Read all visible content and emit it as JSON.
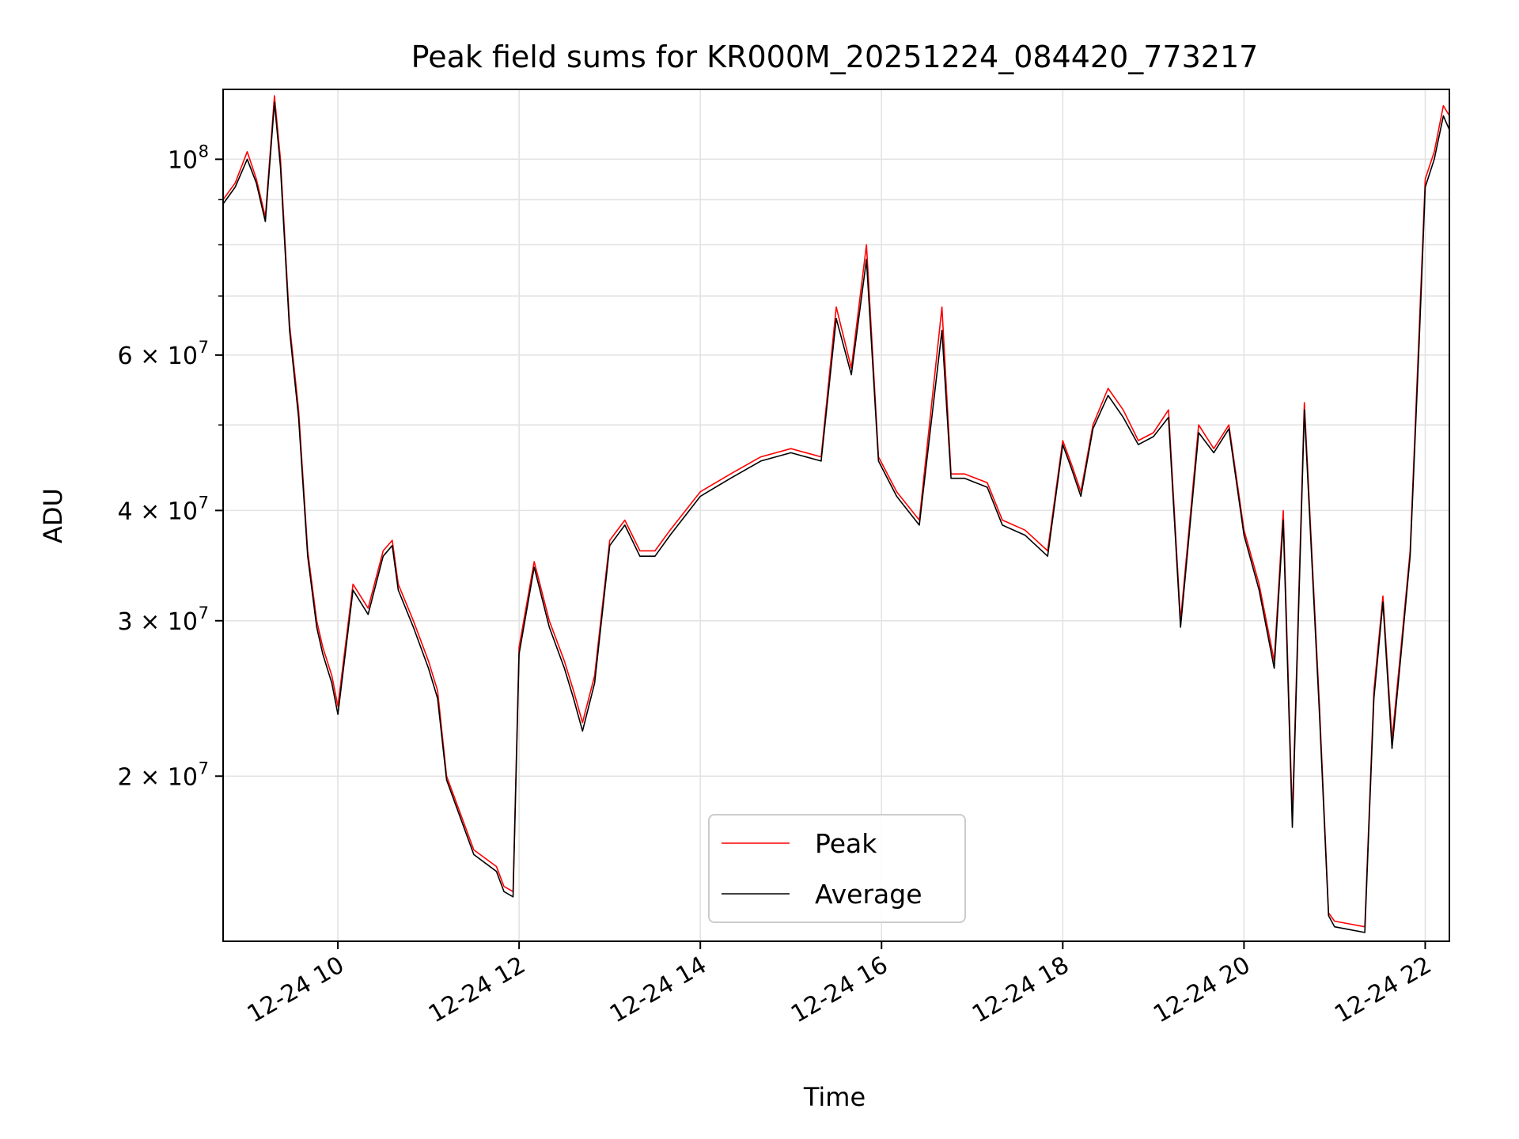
{
  "chart_data": {
    "type": "line",
    "title": "Peak field sums for KR000M_20251224_084420_773217",
    "xlabel": "Time",
    "ylabel": "ADU",
    "yscale": "log",
    "grid": true,
    "legend": {
      "placement": "lower-center",
      "entries": [
        "Peak",
        "Average"
      ]
    },
    "xlim": [
      "2025-12-24T08:44",
      "2025-12-24T22:16"
    ],
    "ylim": [
      13000000,
      120000000
    ],
    "x_ticks": [
      {
        "value": "2025-12-24T10:00",
        "label": "12-24 10"
      },
      {
        "value": "2025-12-24T12:00",
        "label": "12-24 12"
      },
      {
        "value": "2025-12-24T14:00",
        "label": "12-24 14"
      },
      {
        "value": "2025-12-24T16:00",
        "label": "12-24 16"
      },
      {
        "value": "2025-12-24T18:00",
        "label": "12-24 18"
      },
      {
        "value": "2025-12-24T20:00",
        "label": "12-24 20"
      },
      {
        "value": "2025-12-24T22:00",
        "label": "12-24 22"
      }
    ],
    "y_ticks": [
      {
        "value": 20000000,
        "label": "2 × 10",
        "exp": "7"
      },
      {
        "value": 30000000,
        "label": "3 × 10",
        "exp": "7"
      },
      {
        "value": 40000000,
        "label": "4 × 10",
        "exp": "7"
      },
      {
        "value": 60000000,
        "label": "6 × 10",
        "exp": "7"
      },
      {
        "value": 100000000,
        "label": "10",
        "exp": "8"
      }
    ],
    "y_minor_ticks": [
      50000000,
      70000000,
      80000000,
      90000000
    ],
    "x": [
      "2025-12-24T08:44",
      "2025-12-24T08:52",
      "2025-12-24T09:00",
      "2025-12-24T09:06",
      "2025-12-24T09:12",
      "2025-12-24T09:18",
      "2025-12-24T09:22",
      "2025-12-24T09:28",
      "2025-12-24T09:34",
      "2025-12-24T09:40",
      "2025-12-24T09:46",
      "2025-12-24T09:50",
      "2025-12-24T09:56",
      "2025-12-24T10:00",
      "2025-12-24T10:10",
      "2025-12-24T10:20",
      "2025-12-24T10:30",
      "2025-12-24T10:36",
      "2025-12-24T10:40",
      "2025-12-24T10:50",
      "2025-12-24T11:00",
      "2025-12-24T11:06",
      "2025-12-24T11:12",
      "2025-12-24T11:30",
      "2025-12-24T11:45",
      "2025-12-24T11:50",
      "2025-12-24T11:56",
      "2025-12-24T12:00",
      "2025-12-24T12:10",
      "2025-12-24T12:20",
      "2025-12-24T12:30",
      "2025-12-24T12:36",
      "2025-12-24T12:42",
      "2025-12-24T12:50",
      "2025-12-24T13:00",
      "2025-12-24T13:10",
      "2025-12-24T13:20",
      "2025-12-24T13:30",
      "2025-12-24T13:40",
      "2025-12-24T14:00",
      "2025-12-24T14:20",
      "2025-12-24T14:40",
      "2025-12-24T15:00",
      "2025-12-24T15:20",
      "2025-12-24T15:30",
      "2025-12-24T15:40",
      "2025-12-24T15:50",
      "2025-12-24T15:58",
      "2025-12-24T16:10",
      "2025-12-24T16:25",
      "2025-12-24T16:40",
      "2025-12-24T16:46",
      "2025-12-24T16:55",
      "2025-12-24T17:10",
      "2025-12-24T17:20",
      "2025-12-24T17:35",
      "2025-12-24T17:50",
      "2025-12-24T18:00",
      "2025-12-24T18:06",
      "2025-12-24T18:12",
      "2025-12-24T18:20",
      "2025-12-24T18:30",
      "2025-12-24T18:40",
      "2025-12-24T18:50",
      "2025-12-24T19:00",
      "2025-12-24T19:10",
      "2025-12-24T19:18",
      "2025-12-24T19:30",
      "2025-12-24T19:40",
      "2025-12-24T19:50",
      "2025-12-24T20:00",
      "2025-12-24T20:10",
      "2025-12-24T20:20",
      "2025-12-24T20:26",
      "2025-12-24T20:32",
      "2025-12-24T20:40",
      "2025-12-24T20:50",
      "2025-12-24T20:56",
      "2025-12-24T21:00",
      "2025-12-24T21:10",
      "2025-12-24T21:20",
      "2025-12-24T21:26",
      "2025-12-24T21:32",
      "2025-12-24T21:38",
      "2025-12-24T21:44",
      "2025-12-24T21:50",
      "2025-12-24T21:56",
      "2025-12-24T22:00",
      "2025-12-24T22:06",
      "2025-12-24T22:12",
      "2025-12-24T22:16"
    ],
    "series": [
      {
        "name": "Peak",
        "color": "#ff0000",
        "values": [
          90000000,
          94000000,
          102000000,
          95000000,
          86000000,
          118000000,
          100000000,
          65000000,
          52000000,
          36000000,
          30000000,
          28000000,
          26000000,
          24000000,
          33000000,
          31000000,
          36000000,
          37000000,
          33000000,
          30000000,
          27000000,
          25000000,
          20000000,
          16500000,
          15800000,
          15000000,
          14800000,
          28000000,
          35000000,
          30000000,
          27000000,
          25000000,
          23000000,
          26000000,
          37000000,
          39000000,
          36000000,
          36000000,
          38000000,
          42000000,
          44000000,
          46000000,
          47000000,
          46000000,
          68000000,
          58000000,
          80000000,
          46000000,
          42000000,
          39000000,
          68000000,
          44000000,
          44000000,
          43000000,
          39000000,
          38000000,
          36000000,
          48000000,
          45000000,
          42000000,
          50000000,
          55000000,
          52000000,
          48000000,
          49000000,
          52000000,
          30000000,
          50000000,
          47000000,
          50000000,
          38000000,
          33000000,
          27000000,
          40000000,
          18000000,
          53000000,
          24000000,
          14000000,
          13700000,
          13600000,
          13500000,
          25000000,
          32000000,
          22000000,
          28000000,
          36000000,
          64000000,
          95000000,
          102000000,
          115000000,
          112000000
        ]
      },
      {
        "name": "Average",
        "color": "#000000",
        "values": [
          89000000,
          93000000,
          100000000,
          94000000,
          85000000,
          116000000,
          98000000,
          64000000,
          51000000,
          35500000,
          29500000,
          27500000,
          25500000,
          23500000,
          32500000,
          30500000,
          35500000,
          36500000,
          32500000,
          29500000,
          26500000,
          24500000,
          19800000,
          16300000,
          15600000,
          14800000,
          14600000,
          27500000,
          34500000,
          29500000,
          26500000,
          24500000,
          22500000,
          25500000,
          36500000,
          38500000,
          35500000,
          35500000,
          37500000,
          41500000,
          43500000,
          45500000,
          46500000,
          45500000,
          66000000,
          57000000,
          77000000,
          45500000,
          41500000,
          38500000,
          64000000,
          43500000,
          43500000,
          42500000,
          38500000,
          37500000,
          35500000,
          47500000,
          44500000,
          41500000,
          49500000,
          54000000,
          51000000,
          47500000,
          48500000,
          51000000,
          29500000,
          49000000,
          46500000,
          49500000,
          37500000,
          32500000,
          26500000,
          39000000,
          17500000,
          52000000,
          23500000,
          13900000,
          13500000,
          13400000,
          13300000,
          24500000,
          31500000,
          21500000,
          27500000,
          35500000,
          62000000,
          93000000,
          100000000,
          112000000,
          108000000
        ]
      }
    ]
  }
}
